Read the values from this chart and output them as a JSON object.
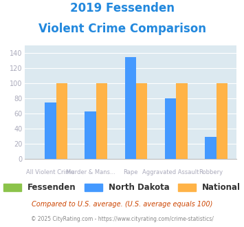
{
  "title_line1": "2019 Fessenden",
  "title_line2": "Violent Crime Comparison",
  "fessenden": [
    0,
    0,
    0,
    0,
    0
  ],
  "north_dakota": [
    75,
    63,
    135,
    80,
    29
  ],
  "national": [
    100,
    100,
    100,
    100,
    100
  ],
  "colors": {
    "fessenden": "#8bc34a",
    "north_dakota": "#4499ff",
    "national": "#ffb347"
  },
  "ylim": [
    0,
    150
  ],
  "yticks": [
    0,
    20,
    40,
    60,
    80,
    100,
    120,
    140
  ],
  "plot_bg": "#dce9f0",
  "title_color": "#2288dd",
  "axis_label_color": "#aaaabb",
  "legend_label_color": "#333333",
  "footer_text1": "Compared to U.S. average. (U.S. average equals 100)",
  "footer_text2": "© 2025 CityRating.com - https://www.cityrating.com/crime-statistics/",
  "footer_color1": "#cc4400",
  "footer_color2": "#888888",
  "line1_labels": [
    "",
    "Murder & Mans...",
    "",
    "Aggravated Assault",
    ""
  ],
  "line2_labels": [
    "All Violent Crime",
    "",
    "Rape",
    "",
    "Robbery"
  ]
}
